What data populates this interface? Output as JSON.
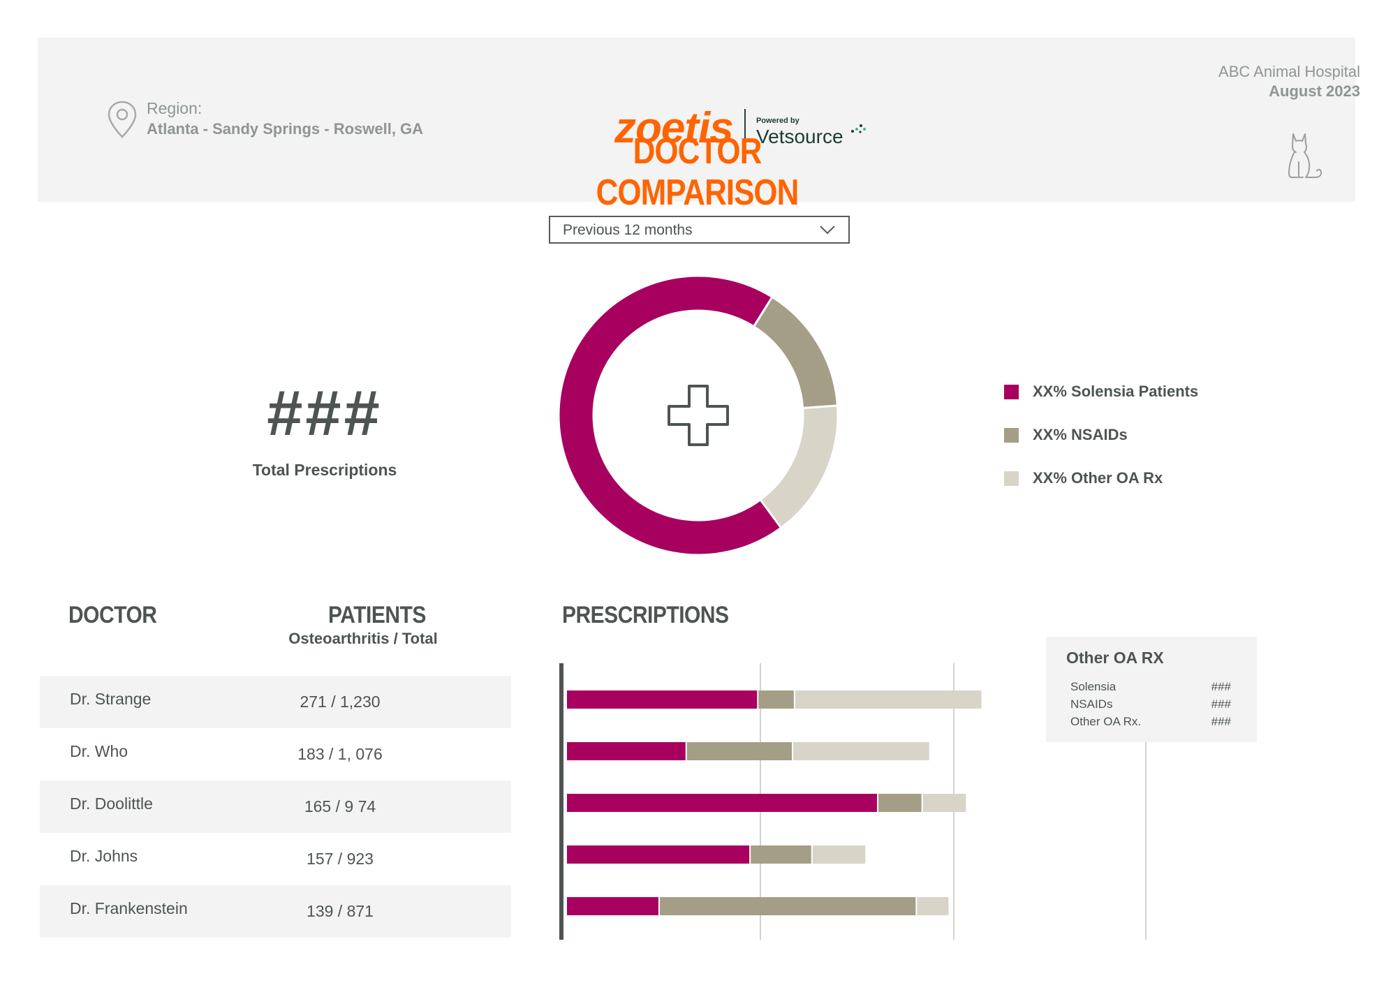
{
  "header": {
    "region_label": "Region:",
    "region_value": "Atlanta - Sandy Springs - Roswell, GA",
    "logo_brand": "zoetis",
    "logo_powered_by": "Powered by",
    "logo_partner": "Vetsource",
    "title": "DOCTOR COMPARISON",
    "hospital": "ABC Animal Hospital",
    "month": "August 2023",
    "icons": [
      "location-pin-icon",
      "cat-icon"
    ]
  },
  "filter": {
    "selected": "Previous 12 months",
    "icon": "chevron-down-icon"
  },
  "kpi": {
    "value": "###",
    "label": "Total Prescriptions"
  },
  "colors": {
    "solensia": "#a8005e",
    "nsaids": "#a59e87",
    "other": "#d8d4c8",
    "accent": "#ff6400",
    "panel": "#f2f3f2",
    "text": "#4d5451"
  },
  "chart_data": [
    {
      "type": "pie",
      "title": "",
      "center_icon": "medical-cross-icon",
      "categories": [
        "XX% Solensia Patients",
        "XX% NSAIDs",
        "XX% Other OA Rx"
      ],
      "values": [
        69,
        15,
        16
      ],
      "legend_position": "right"
    },
    {
      "type": "bar",
      "orientation": "horizontal",
      "stacked": true,
      "title": "PRESCRIPTIONS",
      "categories": [
        "Dr. Strange",
        "Dr. Who",
        "Dr. Doolittle",
        "Dr. Johns",
        "Dr. Frankenstein"
      ],
      "series": [
        {
          "values": [
            99,
            62,
            161,
            95,
            48
          ]
        },
        {
          "values": [
            19,
            55,
            23,
            32,
            133
          ]
        },
        {
          "values": [
            97,
            71,
            23,
            28,
            17
          ]
        }
      ],
      "xlim": [
        0,
        300
      ],
      "gridlines": [
        100,
        200
      ],
      "grid": true
    }
  ],
  "legend": {
    "items": [
      {
        "label": "XX% Solensia Patients",
        "color": "#a8005e"
      },
      {
        "label": "XX% NSAIDs",
        "color": "#a59e87"
      },
      {
        "label": "XX% Other OA Rx",
        "color": "#d8d4c8"
      }
    ]
  },
  "table": {
    "col_doctor": "DOCTOR",
    "col_patients": "PATIENTS",
    "col_patients_sub": "Osteoarthritis / Total",
    "col_prescriptions": "PRESCRIPTIONS",
    "rows": [
      {
        "doctor": "Dr. Strange",
        "patients": "271  /  1,230"
      },
      {
        "doctor": "Dr. Who",
        "patients": "183  /  1, 076"
      },
      {
        "doctor": "Dr. Doolittle",
        "patients": "165  /  9 74"
      },
      {
        "doctor": "Dr. Johns",
        "patients": "157  /  923"
      },
      {
        "doctor": "Dr. Frankenstein",
        "patients": "139  /  871"
      }
    ]
  },
  "tooltip": {
    "title": "Other OA RX",
    "rows": [
      {
        "label": "Solensia",
        "value": "###"
      },
      {
        "label": "NSAIDs",
        "value": "###"
      },
      {
        "label": "Other OA Rx.",
        "value": "###"
      }
    ]
  }
}
